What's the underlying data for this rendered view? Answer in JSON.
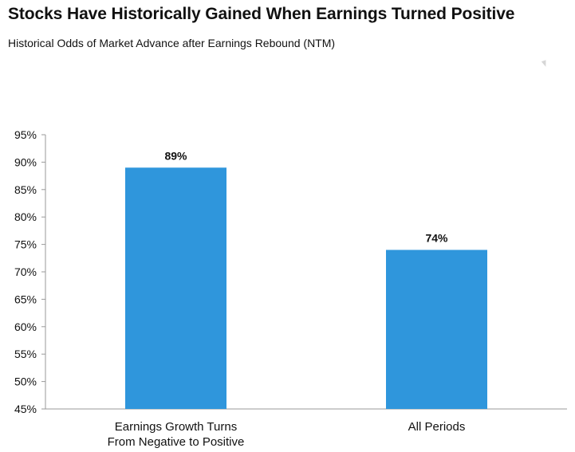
{
  "chart_data": {
    "type": "bar",
    "title": "Stocks Have Historically Gained When Earnings Turned Positive",
    "subtitle": "Historical Odds of Market Advance after Earnings Rebound (NTM)",
    "categories": [
      [
        "Earnings Growth Turns",
        "From Negative to Positive"
      ],
      [
        "All Periods"
      ]
    ],
    "values": [
      89,
      74
    ],
    "data_labels": [
      "89%",
      "74%"
    ],
    "ylim": [
      45,
      95
    ],
    "yticks": [
      45,
      50,
      55,
      60,
      65,
      70,
      75,
      80,
      85,
      90,
      95
    ],
    "ytick_labels": [
      "45%",
      "50%",
      "55%",
      "60%",
      "65%",
      "70%",
      "75%",
      "80%",
      "85%",
      "90%",
      "95%"
    ],
    "bar_color": "#2f96dc",
    "axis_color": "#9a9a9a",
    "grid": false,
    "legend": "none"
  }
}
